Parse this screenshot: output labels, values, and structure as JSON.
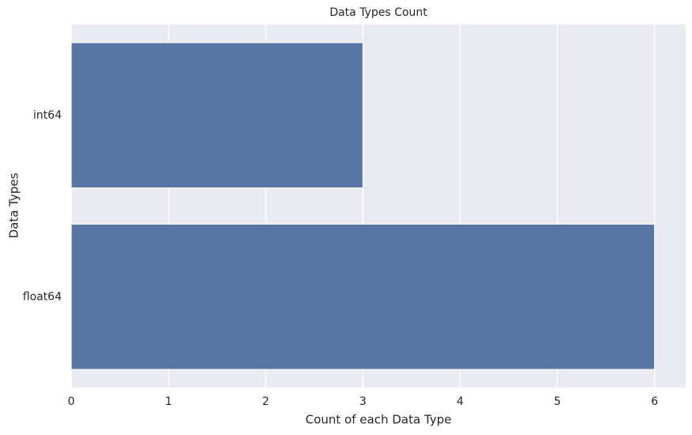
{
  "chart_data": {
    "type": "barh",
    "title": "Data Types Count",
    "x_label": "Count of each Data Type",
    "y_label": "Data Types",
    "categories": [
      "int64",
      "float64"
    ],
    "values": [
      3,
      6
    ],
    "color": "#5975a4",
    "xlim": [
      0,
      6.32
    ],
    "xticks": [
      0,
      1,
      2,
      3,
      4,
      5,
      6
    ],
    "grid": true
  }
}
